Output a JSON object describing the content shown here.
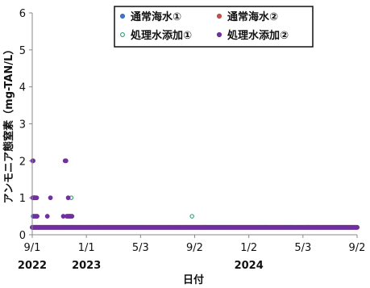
{
  "chart_data": {
    "type": "scatter",
    "xlabel": "日付",
    "ylabel": "アンモニア態窒素（mg-TAN/L）",
    "ylim": [
      0,
      6
    ],
    "yticks": [
      "0",
      "1",
      "2",
      "3",
      "4",
      "5",
      "6"
    ],
    "xlim": [
      "2022-09-01",
      "2024-09-02"
    ],
    "xticks": [
      {
        "date": "2022-09-01",
        "label": "9/1"
      },
      {
        "date": "2023-01-01",
        "label": "1/1"
      },
      {
        "date": "2023-05-03",
        "label": "5/3"
      },
      {
        "date": "2023-09-02",
        "label": "9/2"
      },
      {
        "date": "2024-01-02",
        "label": "1/2"
      },
      {
        "date": "2024-05-03",
        "label": "5/3"
      },
      {
        "date": "2024-09-02",
        "label": "9/2"
      }
    ],
    "year_labels": [
      {
        "date": "2022-09-01",
        "label": "2022"
      },
      {
        "date": "2023-01-01",
        "label": "2023"
      },
      {
        "date": "2024-01-02",
        "label": "2024"
      }
    ],
    "grid": false,
    "legend_position": "top-center",
    "series": [
      {
        "name": "通常海水①",
        "color": "#4472c4",
        "marker": "filled",
        "baseline": {
          "from": "2022-09-01",
          "to": "2024-09-02",
          "step_days": 2,
          "y": 0.2
        },
        "points": [
          {
            "x": "2022-09-03",
            "y": 0.5
          },
          {
            "x": "2022-09-07",
            "y": 1.0
          },
          {
            "x": "2022-11-24",
            "y": 0.5
          }
        ]
      },
      {
        "name": "通常海水②",
        "color": "#c0504d",
        "marker": "filled",
        "baseline": {
          "from": "2022-09-01",
          "to": "2024-09-02",
          "step_days": 2,
          "y": 0.2
        },
        "points": [
          {
            "x": "2022-09-05",
            "y": 1.0
          },
          {
            "x": "2022-11-20",
            "y": 0.5
          }
        ]
      },
      {
        "name": "処理水添加①",
        "color": "#2e9a78",
        "marker": "open",
        "baseline": {
          "from": "2022-09-01",
          "to": "2024-09-02",
          "step_days": 2,
          "y": 0.2
        },
        "points": [
          {
            "x": "2022-09-04",
            "y": 1.0
          },
          {
            "x": "2022-09-08",
            "y": 0.5
          },
          {
            "x": "2022-11-28",
            "y": 1.0
          },
          {
            "x": "2022-11-30",
            "y": 0.5
          },
          {
            "x": "2023-08-27",
            "y": 0.5
          }
        ]
      },
      {
        "name": "処理水添加②",
        "color": "#7030a0",
        "marker": "filled",
        "baseline": {
          "from": "2022-09-01",
          "to": "2024-09-02",
          "step_days": 2,
          "y": 0.2
        },
        "points": [
          {
            "x": "2022-09-02",
            "y": 2.0
          },
          {
            "x": "2022-09-02",
            "y": 1.0
          },
          {
            "x": "2022-09-03",
            "y": 2.0
          },
          {
            "x": "2022-09-04",
            "y": 1.0
          },
          {
            "x": "2022-09-05",
            "y": 0.5
          },
          {
            "x": "2022-09-06",
            "y": 1.0
          },
          {
            "x": "2022-09-08",
            "y": 1.0
          },
          {
            "x": "2022-09-09",
            "y": 0.5
          },
          {
            "x": "2022-09-11",
            "y": 1.0
          },
          {
            "x": "2022-09-12",
            "y": 0.5
          },
          {
            "x": "2022-10-05",
            "y": 0.5
          },
          {
            "x": "2022-10-12",
            "y": 1.0
          },
          {
            "x": "2022-11-10",
            "y": 0.5
          },
          {
            "x": "2022-11-14",
            "y": 2.0
          },
          {
            "x": "2022-11-16",
            "y": 2.0
          },
          {
            "x": "2022-11-18",
            "y": 0.5
          },
          {
            "x": "2022-11-21",
            "y": 1.0
          },
          {
            "x": "2022-11-23",
            "y": 0.5
          },
          {
            "x": "2022-11-26",
            "y": 0.5
          },
          {
            "x": "2022-11-29",
            "y": 0.5
          }
        ]
      }
    ]
  }
}
